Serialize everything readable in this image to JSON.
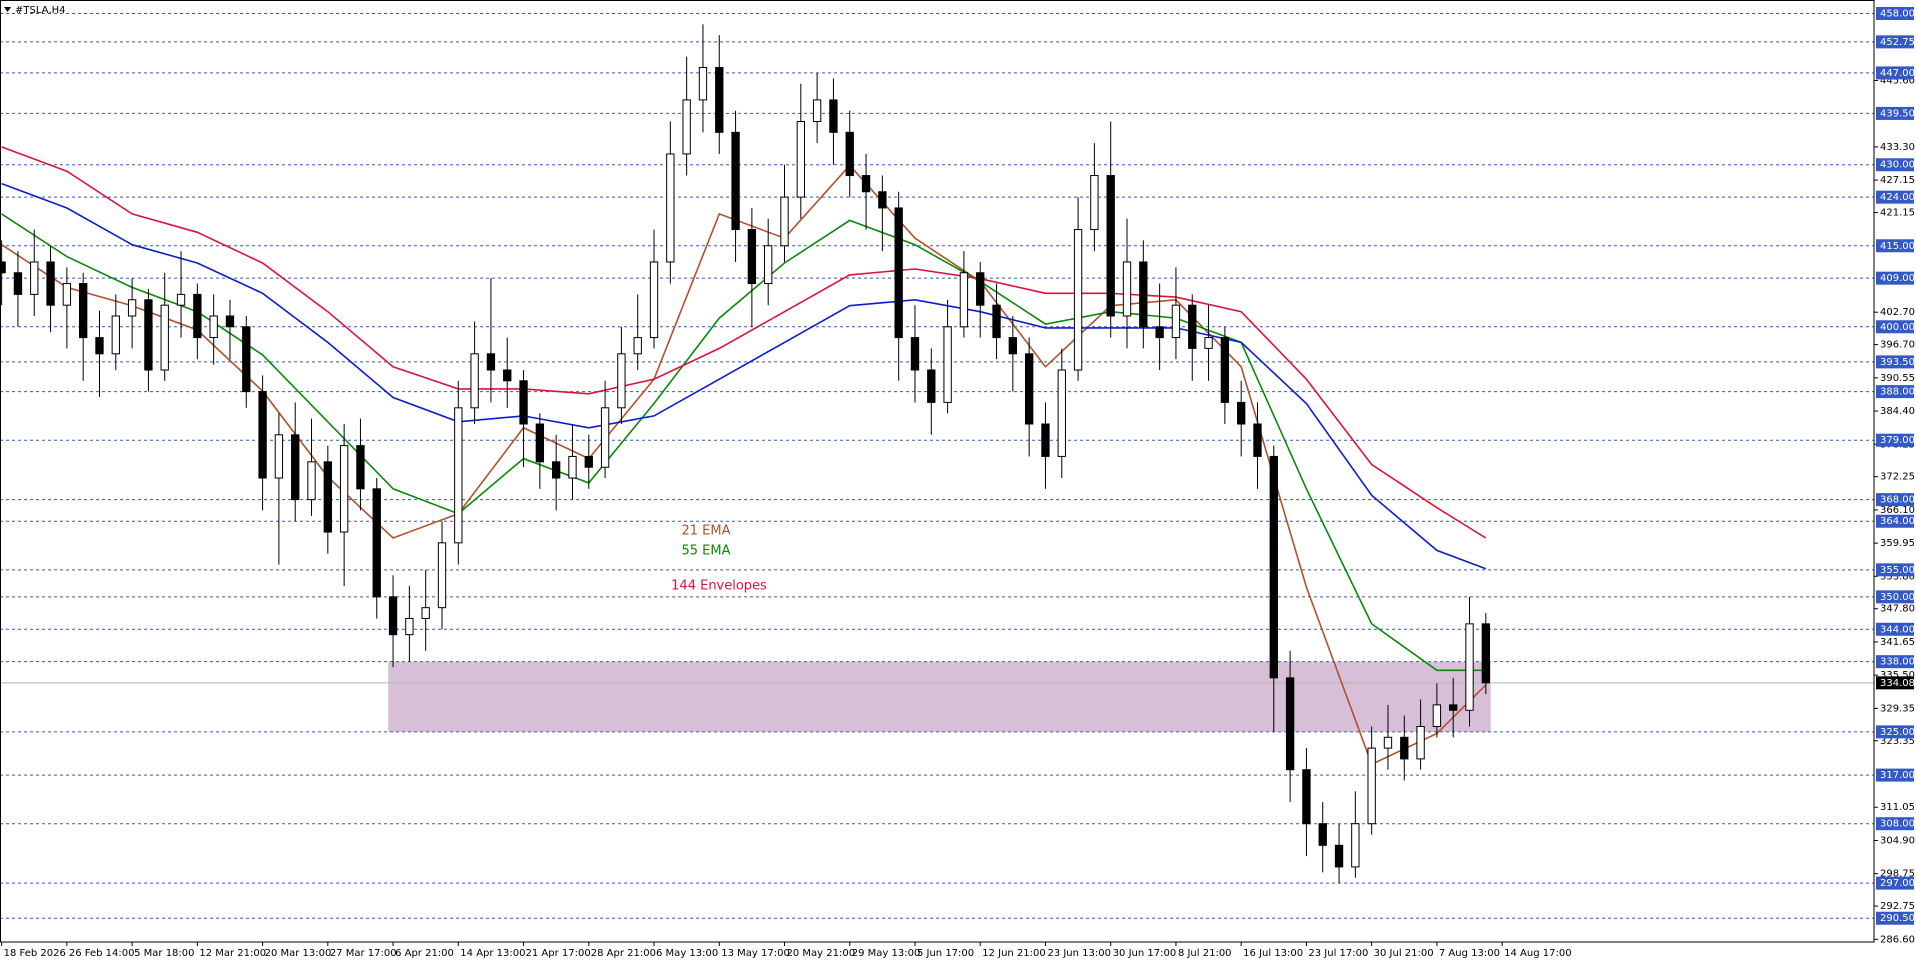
{
  "chart_data": {
    "type": "candlestick",
    "title": "#TSLA,H4",
    "xlim": [
      -0.1,
      114.8
    ],
    "ylim": [
      286.1,
      460.5
    ],
    "xticks": [
      {
        "value": 0,
        "label": "18 Feb 2026"
      },
      {
        "value": 4,
        "label": "26 Feb 14:00"
      },
      {
        "value": 8,
        "label": "5 Mar 18:00"
      },
      {
        "value": 12,
        "label": "12 Mar 21:00"
      },
      {
        "value": 16,
        "label": "20 Mar 13:00"
      },
      {
        "value": 20,
        "label": "27 Mar 17:00"
      },
      {
        "value": 24,
        "label": "6 Apr 21:00"
      },
      {
        "value": 28,
        "label": "14 Apr 13:00"
      },
      {
        "value": 32,
        "label": "21 Apr 17:00"
      },
      {
        "value": 36,
        "label": "28 Apr 21:00"
      },
      {
        "value": 40,
        "label": "6 May 13:00"
      },
      {
        "value": 44,
        "label": "13 May 17:00"
      },
      {
        "value": 48,
        "label": "20 May 21:00"
      },
      {
        "value": 52,
        "label": "29 May 13:00"
      },
      {
        "value": 56,
        "label": "5 Jun 17:00"
      },
      {
        "value": 60,
        "label": "12 Jun 21:00"
      },
      {
        "value": 64,
        "label": "23 Jun 13:00"
      },
      {
        "value": 68,
        "label": "30 Jun 17:00"
      },
      {
        "value": 72,
        "label": "8 Jul 21:00"
      },
      {
        "value": 76,
        "label": "16 Jul 13:00"
      },
      {
        "value": 80,
        "label": "23 Jul 17:00"
      },
      {
        "value": 84,
        "label": "30 Jul 21:00"
      },
      {
        "value": 88,
        "label": "7 Aug 13:00"
      },
      {
        "value": 92,
        "label": "14 Aug 17:00"
      }
    ],
    "yticks": [
      {
        "value": 445.6,
        "label": "445.60"
      },
      {
        "value": 433.3,
        "label": "433.30"
      },
      {
        "value": 427.15,
        "label": "427.15"
      },
      {
        "value": 421.15,
        "label": "421.15"
      },
      {
        "value": 402.7,
        "label": "402.70"
      },
      {
        "value": 396.7,
        "label": "396.70"
      },
      {
        "value": 390.55,
        "label": "390.55"
      },
      {
        "value": 384.4,
        "label": "384.40"
      },
      {
        "value": 378.25,
        "label": "378.25"
      },
      {
        "value": 372.25,
        "label": "372.25"
      },
      {
        "value": 366.1,
        "label": "366.10"
      },
      {
        "value": 359.95,
        "label": "359.95"
      },
      {
        "value": 353.8,
        "label": "353.80"
      },
      {
        "value": 347.8,
        "label": "347.80"
      },
      {
        "value": 341.65,
        "label": "341.65"
      },
      {
        "value": 335.5,
        "label": "335.50"
      },
      {
        "value": 329.35,
        "label": "329.35"
      },
      {
        "value": 323.35,
        "label": "323.35"
      },
      {
        "value": 311.05,
        "label": "311.05"
      },
      {
        "value": 304.9,
        "label": "304.90"
      },
      {
        "value": 298.75,
        "label": "298.75"
      },
      {
        "value": 292.75,
        "label": "292.75"
      },
      {
        "value": 286.6,
        "label": "286.60"
      }
    ],
    "level_color": "#3358c8",
    "levels": [
      {
        "value": 458,
        "label": "458.00"
      },
      {
        "value": 452.75,
        "label": "452.75"
      },
      {
        "value": 447,
        "label": "447.00"
      },
      {
        "value": 439.5,
        "label": "439.50"
      },
      {
        "value": 430,
        "label": "430.00"
      },
      {
        "value": 424,
        "label": "424.00"
      },
      {
        "value": 415,
        "label": "415.00"
      },
      {
        "value": 409,
        "label": "409.00"
      },
      {
        "value": 400,
        "label": "400.00"
      },
      {
        "value": 393.5,
        "label": "393.50"
      },
      {
        "value": 388,
        "label": "388.00"
      },
      {
        "value": 379,
        "label": "379.00"
      },
      {
        "value": 368,
        "label": "368.00"
      },
      {
        "value": 364,
        "label": "364.00"
      },
      {
        "value": 355,
        "label": "355.00"
      },
      {
        "value": 350,
        "label": "350.00"
      },
      {
        "value": 344,
        "label": "344.00"
      },
      {
        "value": 338,
        "label": "338.00"
      },
      {
        "value": 325,
        "label": "325.00"
      },
      {
        "value": 317,
        "label": "317.00"
      },
      {
        "value": 308,
        "label": "308.00"
      },
      {
        "value": 297,
        "label": "297.00"
      },
      {
        "value": 290.5,
        "label": "290.50"
      }
    ],
    "current_price": 334.08,
    "zone": {
      "low": 325,
      "high": 338,
      "x": [
        23.7,
        91.3
      ],
      "color": "#d8bfd8"
    },
    "candles": {
      "open": [
        412,
        410,
        406,
        412,
        404,
        408,
        398,
        395,
        402,
        405,
        392,
        404,
        406,
        398,
        402,
        400,
        388,
        372,
        380,
        368,
        375,
        362,
        378,
        370,
        350,
        343,
        346,
        348,
        360,
        385,
        395,
        392,
        390,
        382,
        375,
        372,
        376,
        374,
        385,
        395,
        398,
        412,
        432,
        442,
        448,
        436,
        418,
        408,
        415,
        424,
        438,
        442,
        436,
        428,
        425,
        422,
        398,
        392,
        386,
        400,
        410,
        404,
        398,
        395,
        382,
        376,
        392,
        418,
        428,
        402,
        412,
        400,
        398,
        404,
        396,
        398,
        386,
        382,
        376,
        335,
        318,
        308,
        304,
        300,
        308,
        322,
        324,
        320,
        326,
        330,
        329,
        345
      ],
      "high": [
        416,
        414,
        418,
        415,
        411,
        410,
        403,
        406,
        409,
        407,
        410,
        414,
        408,
        406,
        405,
        402,
        391,
        384,
        386,
        383,
        378,
        382,
        383,
        372,
        354,
        352,
        355,
        364,
        390,
        401,
        409,
        398,
        392,
        384,
        380,
        382,
        380,
        390,
        400,
        406,
        418,
        438,
        450,
        456,
        454,
        440,
        422,
        420,
        430,
        445,
        447,
        446,
        440,
        432,
        428,
        425,
        404,
        396,
        405,
        414,
        412,
        408,
        402,
        398,
        386,
        396,
        424,
        434,
        438,
        420,
        416,
        408,
        411,
        406,
        404,
        400,
        390,
        386,
        378,
        340,
        322,
        312,
        308,
        314,
        326,
        330,
        328,
        331,
        334,
        335,
        350,
        347
      ],
      "low": [
        404,
        400,
        402,
        399,
        396,
        390,
        387,
        392,
        396,
        388,
        390,
        398,
        394,
        393,
        394,
        385,
        366,
        356,
        364,
        365,
        358,
        352,
        366,
        346,
        337,
        338,
        340,
        344,
        356,
        382,
        386,
        385,
        374,
        370,
        366,
        368,
        370,
        372,
        382,
        392,
        396,
        408,
        428,
        436,
        432,
        412,
        400,
        404,
        412,
        420,
        434,
        430,
        424,
        418,
        414,
        390,
        386,
        380,
        384,
        398,
        398,
        394,
        388,
        376,
        370,
        372,
        390,
        414,
        398,
        396,
        396,
        392,
        394,
        390,
        390,
        382,
        376,
        370,
        325,
        312,
        302,
        299,
        297,
        298,
        306,
        318,
        316,
        318,
        324,
        324,
        326,
        332
      ],
      "close": [
        410,
        406,
        412,
        404,
        408,
        398,
        395,
        402,
        405,
        392,
        404,
        406,
        398,
        402,
        400,
        388,
        372,
        380,
        368,
        375,
        362,
        378,
        370,
        350,
        343,
        346,
        348,
        360,
        385,
        395,
        392,
        390,
        382,
        375,
        372,
        376,
        374,
        385,
        395,
        398,
        412,
        432,
        442,
        448,
        436,
        418,
        408,
        415,
        424,
        438,
        442,
        436,
        428,
        425,
        422,
        398,
        392,
        386,
        400,
        410,
        404,
        398,
        395,
        382,
        376,
        392,
        418,
        428,
        402,
        412,
        400,
        398,
        404,
        396,
        398,
        386,
        382,
        376,
        335,
        318,
        308,
        304,
        300,
        308,
        322,
        324,
        320,
        326,
        330,
        329,
        345,
        334.08
      ]
    },
    "line_x": [
      0,
      4,
      8,
      12,
      16,
      20,
      24,
      28,
      32,
      36,
      40,
      44,
      48,
      52,
      56,
      60,
      64,
      68,
      72,
      76,
      80,
      84,
      88,
      91
    ],
    "series": [
      {
        "name": "21 EMA",
        "color": "#b0522a",
        "values": [
          415.2,
          407.3,
          403.9,
          399.4,
          388.1,
          372.2,
          360.9,
          365.4,
          381.3,
          375.6,
          390.3,
          420.9,
          416.4,
          429.9,
          416.4,
          408.4,
          392.6,
          403.9,
          405,
          392.6,
          351.8,
          319,
          324.7,
          333.7
        ]
      },
      {
        "name": "55 EMA",
        "color": "#0a8a0a",
        "values": [
          420.9,
          413,
          407.3,
          402.8,
          394.8,
          382.4,
          370,
          365.4,
          375.6,
          371.1,
          385.8,
          401.6,
          411.8,
          419.7,
          415.2,
          408.4,
          400.5,
          402.8,
          401.6,
          397.1,
          370,
          345,
          336.4,
          336.4
        ]
      },
      {
        "name": "144 Envelopes",
        "color": "#dc143c",
        "values": [
          433.3,
          428.8,
          420.9,
          417.5,
          411.8,
          402.8,
          392.6,
          388.5,
          388.5,
          387.6,
          390.3,
          396,
          402.8,
          409.6,
          410.7,
          408.9,
          406.2,
          406.2,
          405.5,
          402.8,
          390.3,
          374.5,
          366.5,
          360.9
        ],
        "lower_color": "#0a1ecc",
        "lower_values": [
          426.5,
          422,
          415.2,
          411.8,
          406.2,
          397.1,
          386.9,
          382.4,
          383.5,
          381.3,
          383.5,
          390.3,
          397.1,
          403.9,
          405,
          402.8,
          399.8,
          399.8,
          399.8,
          397.1,
          385.8,
          368.8,
          358.6,
          355.2
        ]
      }
    ]
  }
}
